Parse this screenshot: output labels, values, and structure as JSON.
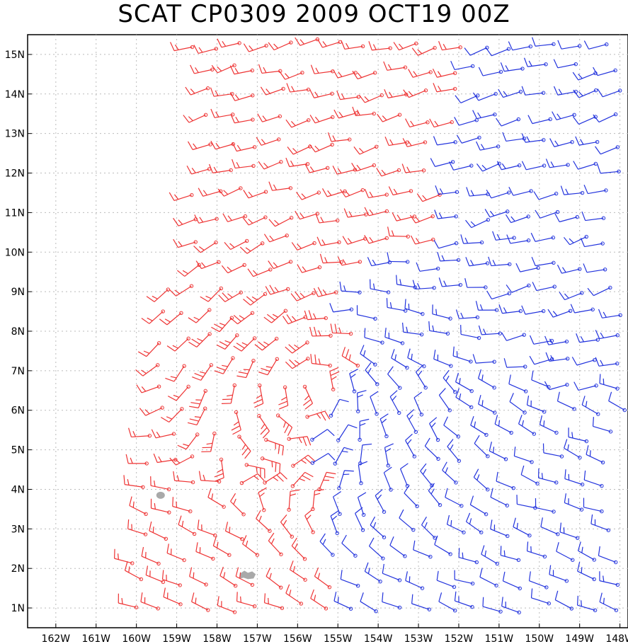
{
  "title": "SCAT CP0309 2009 OCT19 00Z",
  "map": {
    "lon_ticks": [
      "162W",
      "161W",
      "160W",
      "159W",
      "158W",
      "157W",
      "156W",
      "155W",
      "154W",
      "153W",
      "152W",
      "151W",
      "150W",
      "149W",
      "148W"
    ],
    "lat_ticks": [
      "15N",
      "14N",
      "13N",
      "12N",
      "11N",
      "10N",
      "9N",
      "8N",
      "7N",
      "6N",
      "5N",
      "4N",
      "3N",
      "2N",
      "1N"
    ],
    "lon_range": [
      -162.7,
      -147.8
    ],
    "lat_range": [
      0.5,
      15.5
    ],
    "grid": "dotted",
    "colors": {
      "wind_red": "#ee3333",
      "wind_blue": "#2233dd",
      "land": "#a9a9a9",
      "grid": "#bbbbbb",
      "frame": "#000000"
    },
    "cyclone_center": {
      "lon": -155.6,
      "lat": 6.6
    },
    "land_features": [
      {
        "name": "islet-a",
        "lon": -159.4,
        "lat": 3.85
      },
      {
        "name": "islet-b",
        "lon": -157.25,
        "lat": 1.8
      }
    ]
  }
}
